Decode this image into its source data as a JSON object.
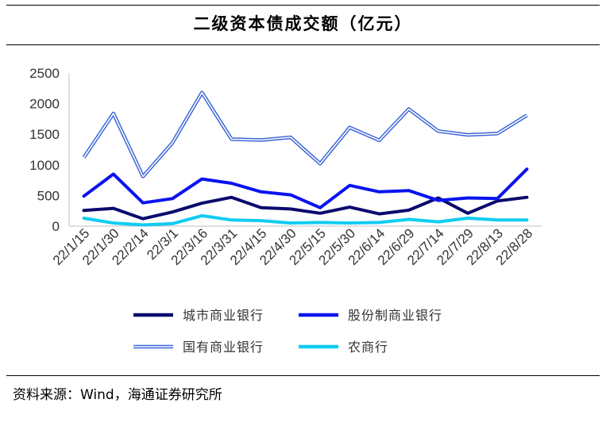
{
  "title": "二级资本债成交额（亿元）",
  "source": "资料来源：Wind，海通证券研究所",
  "chart_data": {
    "type": "line",
    "categories": [
      "22/1/15",
      "22/1/30",
      "22/2/14",
      "22/3/1",
      "22/3/16",
      "22/3/31",
      "22/4/15",
      "22/4/30",
      "22/5/15",
      "22/5/30",
      "22/6/14",
      "22/6/29",
      "22/7/14",
      "22/7/29",
      "22/8/13",
      "22/8/28"
    ],
    "ylim": [
      0,
      2500
    ],
    "yticks": [
      "2500",
      "2000",
      "1500",
      "1000",
      "500",
      "0"
    ],
    "ytick_values": [
      2500,
      2000,
      1500,
      1000,
      500,
      0
    ],
    "grid": false,
    "legend_position": "bottom",
    "series": [
      {
        "name": "城市商业银行",
        "color": "#0a0a6e",
        "style": "solid",
        "values": [
          255,
          290,
          120,
          230,
          375,
          470,
          300,
          280,
          210,
          310,
          200,
          260,
          460,
          210,
          410,
          470
        ]
      },
      {
        "name": "股份制商业银行",
        "color": "#0a14f0",
        "style": "solid",
        "values": [
          490,
          850,
          380,
          450,
          770,
          700,
          560,
          510,
          300,
          665,
          560,
          580,
          420,
          460,
          450,
          930
        ]
      },
      {
        "name": "国有商业银行",
        "color": "#3a64d8",
        "style": "double",
        "values": [
          1120,
          1840,
          810,
          1360,
          2180,
          1420,
          1405,
          1450,
          1020,
          1610,
          1400,
          1910,
          1550,
          1490,
          1510,
          1810
        ]
      },
      {
        "name": "农商行",
        "color": "#10ccf2",
        "style": "solid",
        "values": [
          130,
          50,
          20,
          40,
          170,
          100,
          90,
          50,
          60,
          50,
          60,
          110,
          70,
          130,
          100,
          100
        ]
      }
    ]
  }
}
